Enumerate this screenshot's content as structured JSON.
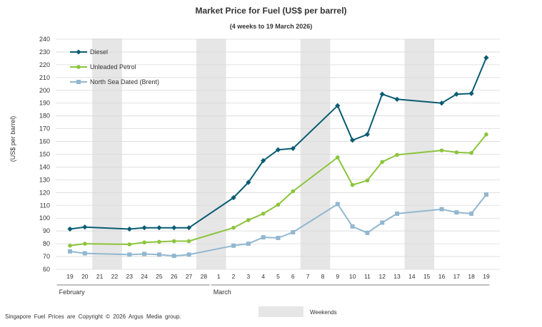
{
  "chart_data": {
    "type": "line",
    "title": "Market Price for Fuel (US$ per barrel)",
    "subtitle": "(4 weeks to 19 March 2026)",
    "xlabel": "",
    "ylabel": "(US$ per barrel)",
    "ylim": [
      60,
      240
    ],
    "ytick_step": 10,
    "grid": true,
    "legend_position": "top-left",
    "categories": [
      "19",
      "20",
      "21",
      "22",
      "23",
      "24",
      "25",
      "26",
      "27",
      "28",
      "1",
      "2",
      "3",
      "4",
      "5",
      "6",
      "7",
      "8",
      "9",
      "10",
      "11",
      "12",
      "13",
      "14",
      "15",
      "16",
      "17",
      "18",
      "19"
    ],
    "months": [
      {
        "label": "February",
        "from_index": 0,
        "to_index": 9
      },
      {
        "label": "March",
        "from_index": 10,
        "to_index": 28
      }
    ],
    "weekend_bands": [
      [
        2,
        3
      ],
      [
        9,
        10
      ],
      [
        16,
        17
      ],
      [
        23,
        24
      ]
    ],
    "series": [
      {
        "name": "Diesel",
        "color": "#0a5c72",
        "marker": "diamond",
        "values": [
          91.5,
          93,
          null,
          null,
          91.5,
          92.5,
          92.5,
          92.5,
          92.5,
          null,
          null,
          116,
          128,
          145,
          153.5,
          154.5,
          null,
          null,
          188,
          161,
          165.5,
          197,
          193,
          null,
          null,
          190,
          197,
          197.5,
          225.5
        ]
      },
      {
        "name": "Unleaded Petrol",
        "color": "#8cc43c",
        "marker": "circle",
        "values": [
          78.5,
          80,
          null,
          null,
          79.5,
          81,
          81.5,
          82,
          82,
          null,
          null,
          92.5,
          98.5,
          103.5,
          110.5,
          121,
          null,
          null,
          147.5,
          126,
          129.5,
          144,
          149.5,
          null,
          null,
          153,
          151.5,
          151,
          165.5
        ]
      },
      {
        "name": "North Sea Dated (Brent)",
        "color": "#92b7d0",
        "marker": "square",
        "values": [
          74,
          72.5,
          null,
          null,
          71.5,
          72,
          71.5,
          70.5,
          71.5,
          null,
          null,
          78.5,
          80,
          85,
          84.5,
          89,
          null,
          null,
          111,
          93.5,
          88.5,
          96.5,
          103.5,
          null,
          null,
          107,
          104.5,
          103.5,
          118.5
        ]
      }
    ]
  },
  "footer": {
    "copyright": "Singapore Fuel Prices are Copyright © 2026 Argus Media group.",
    "weekends_label": "Weekends"
  }
}
